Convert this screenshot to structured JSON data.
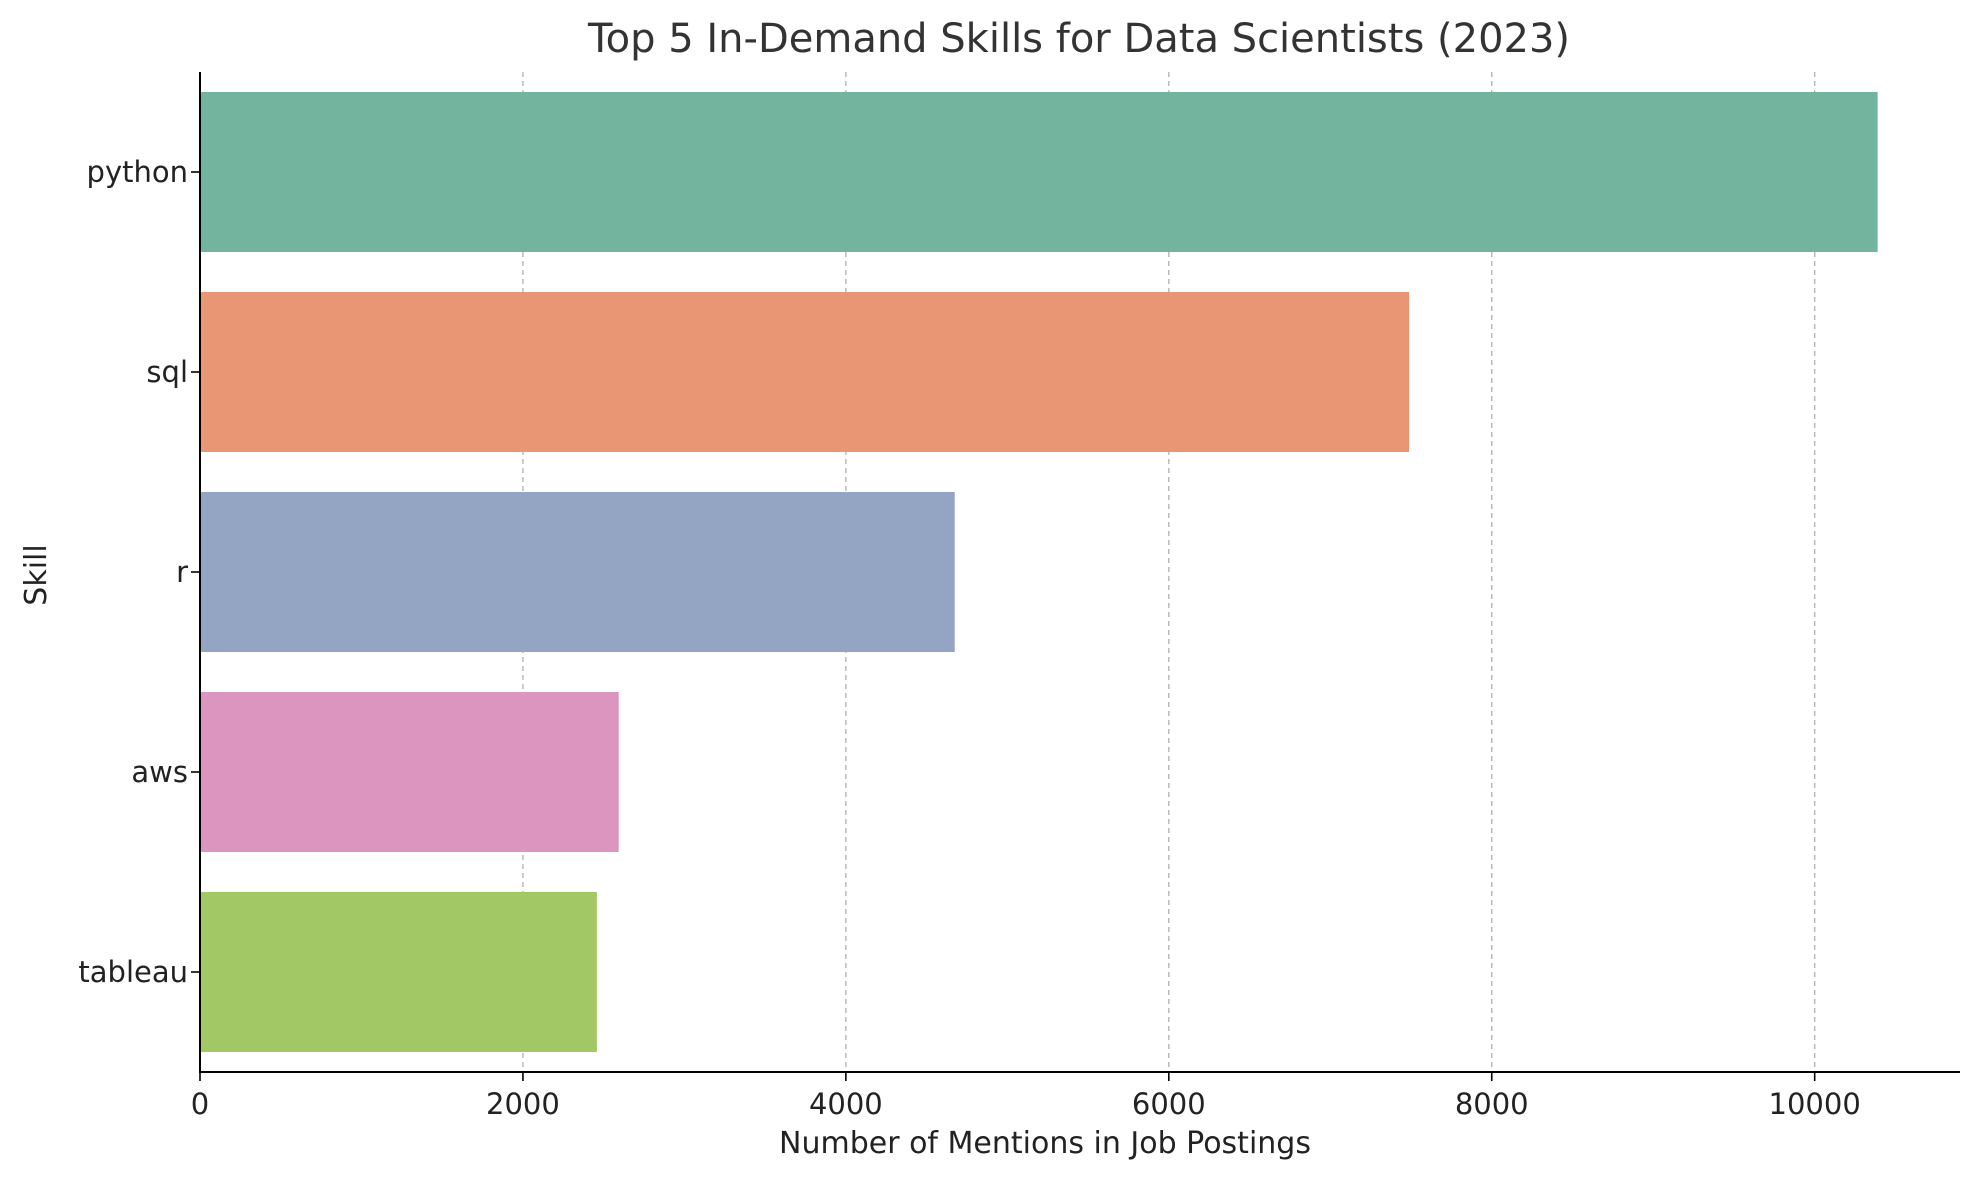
{
  "chart_data": {
    "type": "bar",
    "orientation": "horizontal",
    "title": "Top 5 In-Demand Skills for Data Scientists (2023)",
    "xlabel": "Number of Mentions in Job Postings",
    "ylabel": "Skill",
    "categories": [
      "python",
      "sql",
      "r",
      "aws",
      "tableau"
    ],
    "values": [
      10390,
      7488,
      4674,
      2593,
      2458
    ],
    "colors": [
      "#73b49f",
      "#e99674",
      "#94a4c3",
      "#dc95bf",
      "#a2c765"
    ],
    "xlim": [
      0,
      10900
    ],
    "xticks": [
      0,
      2000,
      4000,
      6000,
      8000,
      10000
    ],
    "xtick_labels": [
      "0",
      "2000",
      "4000",
      "6000",
      "8000",
      "10000"
    ],
    "grid": "vertical-dashed",
    "legend": "none"
  }
}
